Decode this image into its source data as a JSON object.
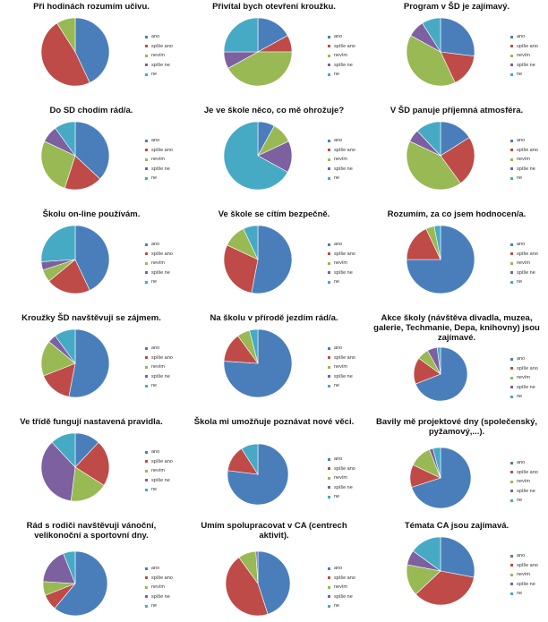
{
  "legend_labels": [
    "ano",
    "spíše ano",
    "nevím",
    "spíše ne",
    "ne"
  ],
  "series_colors": [
    "#4a7ebb",
    "#be4b48",
    "#98b954",
    "#7d60a0",
    "#46aac5"
  ],
  "chart_data": [
    {
      "type": "pie",
      "title": "Při hodinách rozumím učivu.",
      "values": [
        43,
        48,
        9,
        0,
        0
      ]
    },
    {
      "type": "pie",
      "title": "Přivítal bych otevření kroužku.",
      "values": [
        17,
        8,
        42,
        8,
        25
      ]
    },
    {
      "type": "pie",
      "title": "Program v ŠD je zajímavý.",
      "values": [
        27,
        16,
        40,
        8,
        9
      ]
    },
    {
      "type": "pie",
      "title": "Do SD chodím rád/a.",
      "values": [
        37,
        18,
        27,
        8,
        10
      ]
    },
    {
      "type": "pie",
      "title": "Je ve škole něco, co mě ohrožuje?",
      "values": [
        8,
        0,
        10,
        15,
        67
      ]
    },
    {
      "type": "pie",
      "title": "V ŠD panuje příjemná atmosféra.",
      "values": [
        16,
        24,
        42,
        6,
        12
      ]
    },
    {
      "type": "pie",
      "title": "Školu on-line používám.",
      "values": [
        43,
        21,
        6,
        4,
        26
      ]
    },
    {
      "type": "pie",
      "title": "Ve škole se cítím bezpečně.",
      "values": [
        53,
        29,
        11,
        0,
        7
      ]
    },
    {
      "type": "pie",
      "title": "Rozumím, za co jsem hodnocen/a.",
      "values": [
        75,
        18,
        4,
        0,
        3
      ]
    },
    {
      "type": "pie",
      "title": "Kroužky ŠD navštěvuji se zájmem.",
      "values": [
        53,
        16,
        17,
        4,
        10
      ]
    },
    {
      "type": "pie",
      "title": "Na školu v přírodě jezdím rád/a.",
      "values": [
        76,
        14,
        6,
        0,
        4
      ]
    },
    {
      "type": "pie",
      "title": "Akce školy (návštěva divadla, muzea, galerie, Techmanie, Depa, knihovny) jsou zajímavé.",
      "values": [
        69,
        16,
        7,
        6,
        2
      ]
    },
    {
      "type": "pie",
      "title": "Ve třídě fungují nastavená pravidla.",
      "values": [
        12,
        22,
        18,
        36,
        12
      ]
    },
    {
      "type": "pie",
      "title": "Škola mi umožňuje poznávat nové věci.",
      "values": [
        77,
        14,
        0,
        0,
        9
      ]
    },
    {
      "type": "pie",
      "title": "Bavily mě projektové dny (společenský, pyžamový,...).",
      "values": [
        70,
        12,
        12,
        2,
        4
      ]
    },
    {
      "type": "pie",
      "title": "Rád s rodiči navštěvuji vánoční, velikonoční a sportovní dny.",
      "values": [
        61,
        8,
        7,
        18,
        6
      ]
    },
    {
      "type": "pie",
      "title": "Umím spolupracovat v CA (centrech aktivit).",
      "values": [
        45,
        45,
        9,
        1,
        0
      ]
    },
    {
      "type": "pie",
      "title": "Témata CA jsou zajímavá.",
      "values": [
        28,
        35,
        15,
        7,
        15
      ]
    }
  ]
}
